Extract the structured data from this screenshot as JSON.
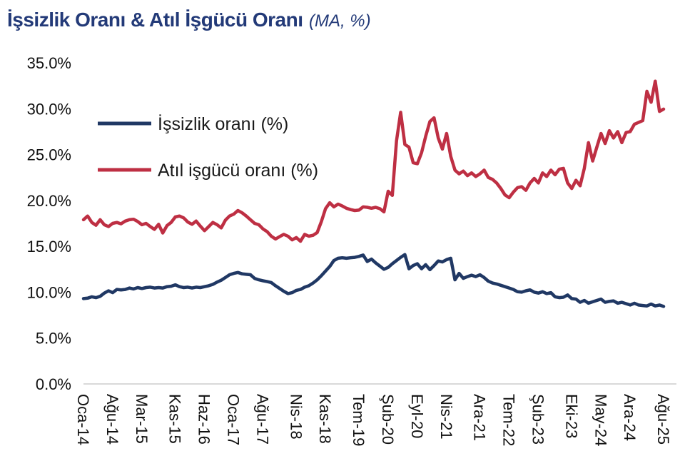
{
  "title": {
    "main": "İşsizlik Oranı & Atıl İşgücü Oranı",
    "suffix": "(MA, %)",
    "color": "#233A78"
  },
  "axis": {
    "baseline_color": "#D9D9D9",
    "tick_label_color": "#111111"
  },
  "chart_data": {
    "type": "line",
    "title": "İşsizlik Oranı & Atıl İşgücü Oranı (MA, %)",
    "x_frequency": "monthly",
    "x_range": [
      "Oca-14",
      "Ağu-25"
    ],
    "ylim": [
      0,
      35
    ],
    "grid": false,
    "legend_position": "inside-top-left",
    "y_ticks": [
      "35.0%",
      "30.0%",
      "25.0%",
      "20.0%",
      "15.0%",
      "10.0%",
      "5.0%",
      "0.0%"
    ],
    "y_tick_values": [
      35,
      30,
      25,
      20,
      15,
      10,
      5,
      0
    ],
    "x_ticks": [
      {
        "label": "Oca-14",
        "month": 0
      },
      {
        "label": "Ağu-14",
        "month": 7
      },
      {
        "label": "Mar-15",
        "month": 14
      },
      {
        "label": "Kas-15",
        "month": 22
      },
      {
        "label": "Haz-16",
        "month": 29
      },
      {
        "label": "Oca-17",
        "month": 36
      },
      {
        "label": "Ağu-17",
        "month": 43
      },
      {
        "label": "Nis-18",
        "month": 51
      },
      {
        "label": "Kas-18",
        "month": 58
      },
      {
        "label": "Tem-19",
        "month": 66
      },
      {
        "label": "Şub-20",
        "month": 73
      },
      {
        "label": "Eyl-20",
        "month": 80
      },
      {
        "label": "Nis-21",
        "month": 87
      },
      {
        "label": "Ara-21",
        "month": 95
      },
      {
        "label": "Tem-22",
        "month": 102
      },
      {
        "label": "Şub-23",
        "month": 109
      },
      {
        "label": "Eki-23",
        "month": 117
      },
      {
        "label": "May-24",
        "month": 124
      },
      {
        "label": "Ara-24",
        "month": 131
      },
      {
        "label": "Ağu-25",
        "month": 139
      }
    ],
    "series": [
      {
        "name": "İşsizlik oranı (%)",
        "color": "#203864",
        "values": [
          9.3,
          9.35,
          9.5,
          9.4,
          9.55,
          9.9,
          10.15,
          9.95,
          10.3,
          10.25,
          10.3,
          10.45,
          10.35,
          10.5,
          10.4,
          10.5,
          10.55,
          10.45,
          10.5,
          10.45,
          10.6,
          10.65,
          10.8,
          10.6,
          10.5,
          10.55,
          10.45,
          10.55,
          10.5,
          10.6,
          10.7,
          10.85,
          11.1,
          11.3,
          11.6,
          11.9,
          12.05,
          12.15,
          12.0,
          11.95,
          11.9,
          11.5,
          11.35,
          11.25,
          11.15,
          11.05,
          10.7,
          10.4,
          10.1,
          9.85,
          9.95,
          10.2,
          10.3,
          10.55,
          10.7,
          11.0,
          11.35,
          11.8,
          12.3,
          12.8,
          13.45,
          13.7,
          13.75,
          13.7,
          13.75,
          13.8,
          13.9,
          14.05,
          13.35,
          13.6,
          13.2,
          12.85,
          12.5,
          12.7,
          13.1,
          13.45,
          13.8,
          14.1,
          12.55,
          12.9,
          13.1,
          12.55,
          13.0,
          12.45,
          12.9,
          13.4,
          13.3,
          13.55,
          13.7,
          11.35,
          12.05,
          11.5,
          11.7,
          11.85,
          11.7,
          11.9,
          11.6,
          11.2,
          11.0,
          10.9,
          10.75,
          10.6,
          10.45,
          10.3,
          10.05,
          10.0,
          10.15,
          10.25,
          10.0,
          9.9,
          10.05,
          9.85,
          9.95,
          9.5,
          9.4,
          9.45,
          9.7,
          9.3,
          9.25,
          8.9,
          9.1,
          8.8,
          8.95,
          9.1,
          9.25,
          8.9,
          9.0,
          9.05,
          8.8,
          8.9,
          8.75,
          8.6,
          8.8,
          8.6,
          8.55,
          8.5,
          8.7,
          8.5,
          8.6,
          8.45
        ]
      },
      {
        "name": "Atıl işgücü oranı (%)",
        "color": "#BE2F43",
        "values": [
          17.9,
          18.3,
          17.6,
          17.3,
          17.9,
          17.35,
          17.15,
          17.5,
          17.6,
          17.45,
          17.75,
          17.9,
          17.95,
          17.7,
          17.35,
          17.5,
          17.15,
          16.85,
          17.4,
          16.45,
          17.25,
          17.6,
          18.2,
          18.3,
          18.1,
          17.65,
          17.4,
          17.75,
          17.2,
          16.7,
          17.15,
          17.6,
          17.35,
          17.0,
          17.85,
          18.3,
          18.5,
          18.9,
          18.65,
          18.3,
          17.9,
          17.5,
          17.35,
          16.9,
          16.6,
          16.1,
          15.8,
          16.05,
          16.3,
          16.1,
          15.7,
          15.95,
          15.55,
          16.3,
          16.1,
          16.2,
          16.5,
          17.7,
          19.1,
          19.75,
          19.3,
          19.6,
          19.4,
          19.15,
          19.0,
          18.9,
          18.95,
          19.3,
          19.25,
          19.15,
          19.25,
          19.1,
          18.75,
          21.0,
          20.55,
          26.5,
          29.6,
          26.1,
          25.8,
          24.1,
          24.0,
          25.2,
          27.0,
          28.6,
          29.0,
          26.8,
          25.6,
          27.3,
          24.8,
          23.3,
          22.9,
          23.2,
          22.7,
          23.0,
          22.6,
          22.9,
          23.3,
          22.5,
          22.3,
          21.9,
          21.3,
          20.6,
          20.3,
          20.9,
          21.4,
          21.5,
          21.1,
          21.9,
          22.4,
          21.9,
          23.0,
          22.6,
          23.3,
          22.8,
          23.4,
          23.5,
          21.9,
          21.3,
          22.2,
          21.6,
          23.5,
          26.3,
          24.3,
          25.8,
          27.3,
          26.2,
          27.6,
          26.8,
          27.5,
          26.3,
          27.4,
          27.5,
          28.3,
          28.5,
          28.7,
          31.9,
          30.7,
          33.0,
          29.7,
          29.95
        ]
      }
    ]
  }
}
